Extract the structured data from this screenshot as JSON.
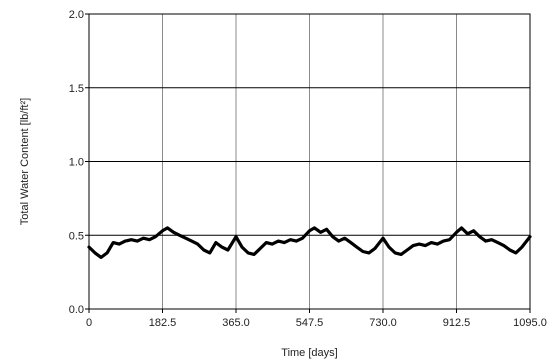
{
  "chart_data": {
    "type": "line",
    "title": "",
    "xlabel": "Time [days]",
    "ylabel": "Total Water Content [lb/ft²]",
    "xlim": [
      0,
      1095
    ],
    "ylim": [
      0,
      2
    ],
    "x_ticks": [
      0,
      182.5,
      365,
      547.5,
      730,
      912.5,
      1095
    ],
    "x_tick_labels": [
      "0",
      "182.5",
      "365.0",
      "547.5",
      "730.0",
      "912.5",
      "1095.0"
    ],
    "y_ticks": [
      0,
      0.5,
      1,
      1.5,
      2
    ],
    "y_tick_labels": [
      "0.0",
      "0.5",
      "1.0",
      "1.5",
      "2.0"
    ],
    "grid": true,
    "series_color": "#000000",
    "series": [
      {
        "x": [
          0,
          15,
          30,
          45,
          60,
          75,
          90,
          105,
          120,
          135,
          150,
          165,
          182.5,
          195,
          210,
          225,
          240,
          255,
          270,
          285,
          300,
          315,
          330,
          345,
          365,
          380,
          395,
          410,
          425,
          440,
          455,
          470,
          485,
          500,
          515,
          530,
          547.5,
          560,
          575,
          590,
          605,
          620,
          635,
          650,
          665,
          680,
          695,
          710,
          730,
          745,
          760,
          775,
          790,
          805,
          820,
          835,
          850,
          865,
          880,
          895,
          912.5,
          925,
          940,
          955,
          970,
          985,
          1000,
          1015,
          1030,
          1045,
          1060,
          1075,
          1095
        ],
        "y": [
          0.42,
          0.38,
          0.35,
          0.38,
          0.45,
          0.44,
          0.46,
          0.47,
          0.46,
          0.48,
          0.47,
          0.49,
          0.53,
          0.55,
          0.52,
          0.5,
          0.48,
          0.46,
          0.44,
          0.4,
          0.38,
          0.45,
          0.42,
          0.4,
          0.49,
          0.42,
          0.38,
          0.37,
          0.41,
          0.45,
          0.44,
          0.46,
          0.45,
          0.47,
          0.46,
          0.48,
          0.53,
          0.55,
          0.52,
          0.54,
          0.49,
          0.46,
          0.48,
          0.45,
          0.42,
          0.39,
          0.38,
          0.41,
          0.48,
          0.42,
          0.38,
          0.37,
          0.4,
          0.43,
          0.44,
          0.43,
          0.45,
          0.44,
          0.46,
          0.47,
          0.52,
          0.55,
          0.51,
          0.53,
          0.49,
          0.46,
          0.47,
          0.45,
          0.43,
          0.4,
          0.38,
          0.42,
          0.49
        ]
      }
    ]
  }
}
